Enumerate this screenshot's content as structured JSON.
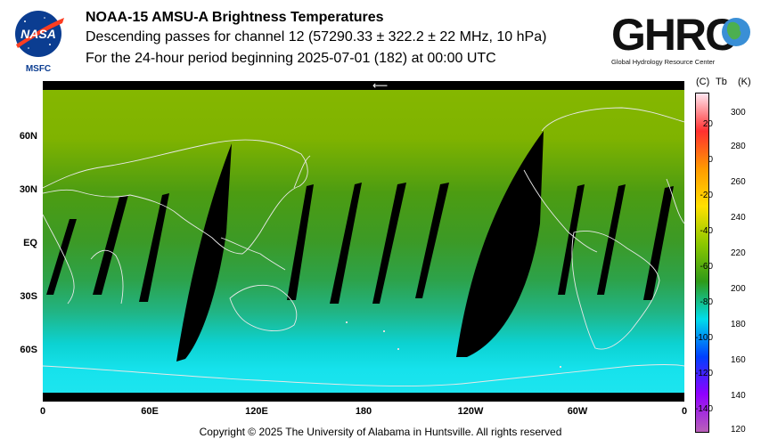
{
  "header": {
    "title": "NOAA-15 AMSU-A Brightness Temperatures",
    "subtitle": "Descending passes for channel 12 (57290.33 ± 322.2 ± 22 MHz, 10 hPa)",
    "period": "For the 24-hour period beginning 2025-07-01 (182) at 00:00 UTC"
  },
  "logos": {
    "left_text": "NASA",
    "left_caption": "MSFC",
    "right_text": "GHRC",
    "right_caption": "Global Hydrology Resource Center"
  },
  "map": {
    "lat_labels": [
      "60N",
      "30N",
      "EQ",
      "30S",
      "60S"
    ],
    "lon_labels": [
      "0",
      "60E",
      "120E",
      "180",
      "120W",
      "60W",
      "0"
    ],
    "arrow_glyph": "⟵"
  },
  "colorbar": {
    "unit_c": "(C)",
    "unit_tb": "Tb",
    "unit_k": "(K)",
    "celsius_labels": [
      "20",
      "0",
      "-20",
      "-40",
      "-60",
      "-80",
      "-100",
      "-120",
      "-140"
    ],
    "kelvin_labels": [
      "300",
      "280",
      "260",
      "240",
      "220",
      "200",
      "180",
      "160",
      "140",
      "120"
    ],
    "colors": [
      "#ffe6f0",
      "#ff3030",
      "#ff9a00",
      "#ffe000",
      "#8cc800",
      "#2f9a18",
      "#00ddea",
      "#0040ff",
      "#9000ff",
      "#b860b8"
    ]
  },
  "footer": {
    "copyright": "Copyright © 2025 The University of Alabama in Huntsville.  All rights reserved"
  }
}
